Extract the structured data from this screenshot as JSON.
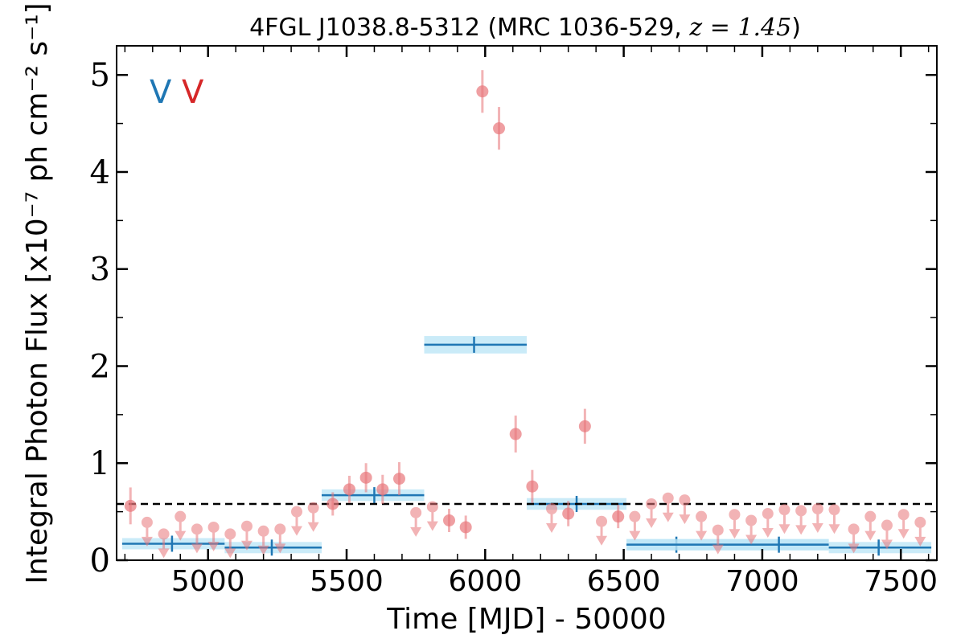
{
  "chart_data": {
    "type": "scatter",
    "title": "4FGL J1038.8-5312 (MRC 1036-529, ",
    "title_math": "z = 1.45",
    "title_close": ")",
    "xlabel": "Time [MJD] - 50000",
    "ylabel": "Integral Photon Flux [x10⁻⁷ ph cm⁻² s⁻¹]",
    "xlim": [
      4670,
      7630
    ],
    "ylim": [
      0,
      5.3
    ],
    "xticks": [
      5000,
      5500,
      6000,
      6500,
      7000,
      7500
    ],
    "yticks": [
      0,
      1,
      2,
      3,
      4,
      5
    ],
    "grid": false,
    "reference_line": 0.58,
    "legend": {
      "placement": "top-left",
      "entries": [
        {
          "label": "V",
          "color": "#1f77b4"
        },
        {
          "label": "V",
          "color": "#d62728"
        }
      ]
    },
    "colors": {
      "bayesian_blocks": "#1f77b4",
      "block_band": "#bde6f6",
      "short_bins": "#e8767a"
    },
    "series": [
      {
        "kind": "blocks",
        "blocks": [
          {
            "x0": 4690,
            "x1": 5060,
            "center": 4870,
            "y": 0.17,
            "err": 0.05
          },
          {
            "x0": 5060,
            "x1": 5410,
            "center": 5230,
            "y": 0.13,
            "err": 0.05
          },
          {
            "x0": 5410,
            "x1": 5780,
            "center": 5600,
            "y": 0.67,
            "err": 0.06
          },
          {
            "x0": 5780,
            "x1": 6150,
            "center": 5960,
            "y": 2.22,
            "err": 0.09
          },
          {
            "x0": 6150,
            "x1": 6510,
            "center": 6330,
            "y": 0.58,
            "err": 0.06
          },
          {
            "x0": 6510,
            "x1": 7240,
            "center": 6690,
            "y": 0.16,
            "err": 0.05
          },
          {
            "x0": 6510,
            "x1": 7240,
            "center": 7060,
            "y": 0.16,
            "err": 0.05
          },
          {
            "x0": 7240,
            "x1": 7610,
            "center": 7420,
            "y": 0.13,
            "err": 0.05
          }
        ]
      },
      {
        "kind": "detections",
        "points": [
          {
            "x": 4720,
            "y": 0.56,
            "err": 0.19
          },
          {
            "x": 5450,
            "y": 0.58,
            "err": 0.12
          },
          {
            "x": 5510,
            "y": 0.73,
            "err": 0.14
          },
          {
            "x": 5570,
            "y": 0.85,
            "err": 0.15
          },
          {
            "x": 5630,
            "y": 0.73,
            "err": 0.15
          },
          {
            "x": 5690,
            "y": 0.84,
            "err": 0.17
          },
          {
            "x": 5870,
            "y": 0.41,
            "err": 0.12
          },
          {
            "x": 5930,
            "y": 0.34,
            "err": 0.12
          },
          {
            "x": 5990,
            "y": 4.83,
            "err": 0.22
          },
          {
            "x": 6050,
            "y": 4.45,
            "err": 0.22
          },
          {
            "x": 6110,
            "y": 1.3,
            "err": 0.19
          },
          {
            "x": 6170,
            "y": 0.76,
            "err": 0.17
          },
          {
            "x": 6300,
            "y": 0.48,
            "err": 0.13
          },
          {
            "x": 6360,
            "y": 1.38,
            "err": 0.18
          },
          {
            "x": 6480,
            "y": 0.45,
            "err": 0.12
          }
        ]
      },
      {
        "kind": "upper_limits",
        "points": [
          {
            "x": 4780,
            "y": 0.39
          },
          {
            "x": 4840,
            "y": 0.27
          },
          {
            "x": 4900,
            "y": 0.45
          },
          {
            "x": 4960,
            "y": 0.32
          },
          {
            "x": 5020,
            "y": 0.34
          },
          {
            "x": 5080,
            "y": 0.27
          },
          {
            "x": 5140,
            "y": 0.35
          },
          {
            "x": 5200,
            "y": 0.3
          },
          {
            "x": 5260,
            "y": 0.32
          },
          {
            "x": 5320,
            "y": 0.5
          },
          {
            "x": 5380,
            "y": 0.54
          },
          {
            "x": 5750,
            "y": 0.49
          },
          {
            "x": 5810,
            "y": 0.55
          },
          {
            "x": 6240,
            "y": 0.53
          },
          {
            "x": 6420,
            "y": 0.4
          },
          {
            "x": 6540,
            "y": 0.45
          },
          {
            "x": 6600,
            "y": 0.58
          },
          {
            "x": 6660,
            "y": 0.64
          },
          {
            "x": 6720,
            "y": 0.62
          },
          {
            "x": 6780,
            "y": 0.45
          },
          {
            "x": 6840,
            "y": 0.31
          },
          {
            "x": 6900,
            "y": 0.47
          },
          {
            "x": 6960,
            "y": 0.41
          },
          {
            "x": 7020,
            "y": 0.48
          },
          {
            "x": 7080,
            "y": 0.52
          },
          {
            "x": 7140,
            "y": 0.51
          },
          {
            "x": 7200,
            "y": 0.53
          },
          {
            "x": 7260,
            "y": 0.52
          },
          {
            "x": 7330,
            "y": 0.32
          },
          {
            "x": 7390,
            "y": 0.45
          },
          {
            "x": 7450,
            "y": 0.36
          },
          {
            "x": 7510,
            "y": 0.47
          },
          {
            "x": 7570,
            "y": 0.39
          }
        ]
      }
    ]
  }
}
